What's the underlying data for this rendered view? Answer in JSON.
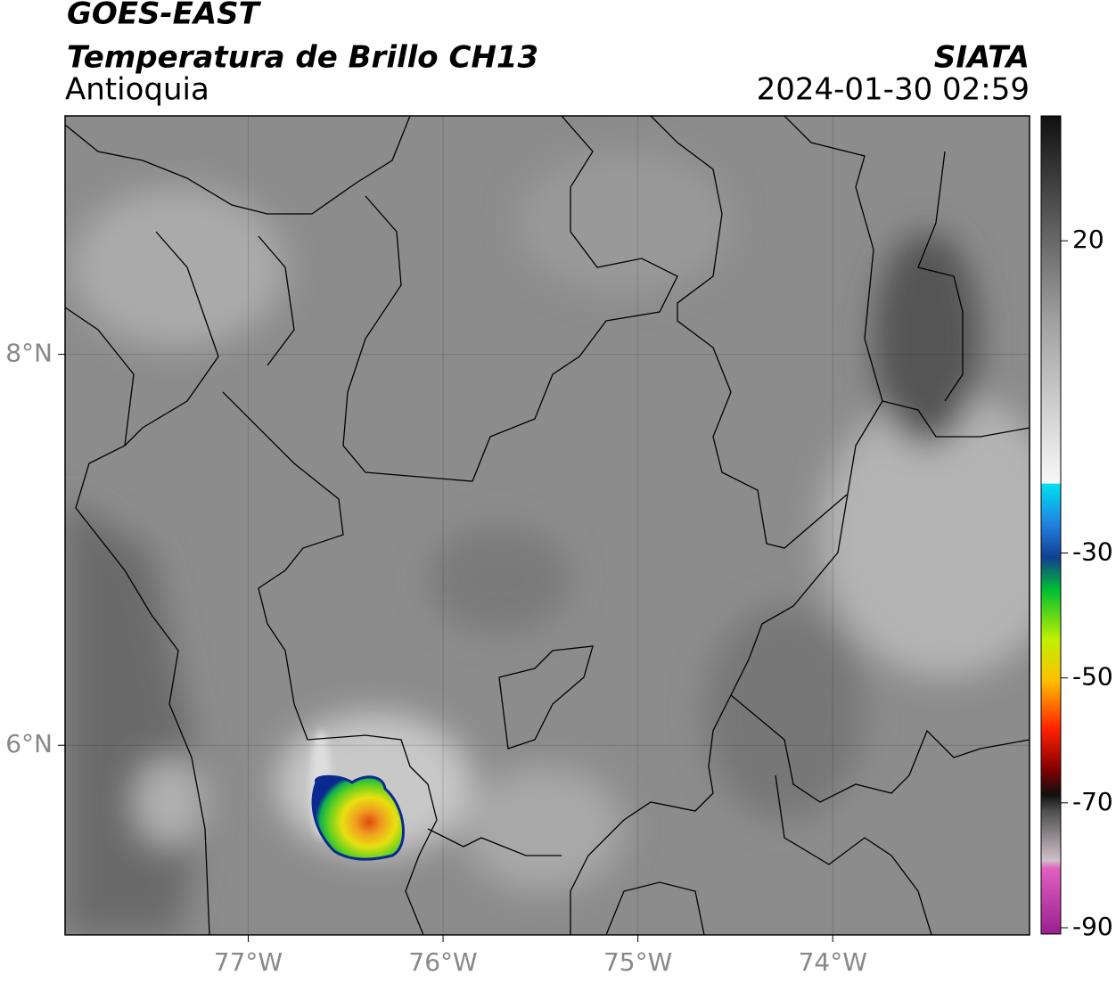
{
  "header": {
    "title": "GOES-EAST",
    "subtitle": "Temperatura de Brillo CH13",
    "region": "Antioquia",
    "source": "SIATA",
    "datetime": "2024-01-30 02:59"
  },
  "map": {
    "xlim": [
      -77.94,
      -72.99
    ],
    "ylim": [
      5.03,
      9.22
    ],
    "xticks": [
      {
        "value": -77,
        "label": "77°W"
      },
      {
        "value": -76,
        "label": "76°W"
      },
      {
        "value": -75,
        "label": "75°W"
      },
      {
        "value": -74,
        "label": "74°W"
      }
    ],
    "yticks": [
      {
        "value": 6,
        "label": "6°N"
      },
      {
        "value": 8,
        "label": "8°N"
      }
    ],
    "grid": true
  },
  "colorbar": {
    "lim": [
      -91,
      40
    ],
    "ticks": [
      -90,
      -70,
      -50,
      -30,
      20
    ]
  }
}
